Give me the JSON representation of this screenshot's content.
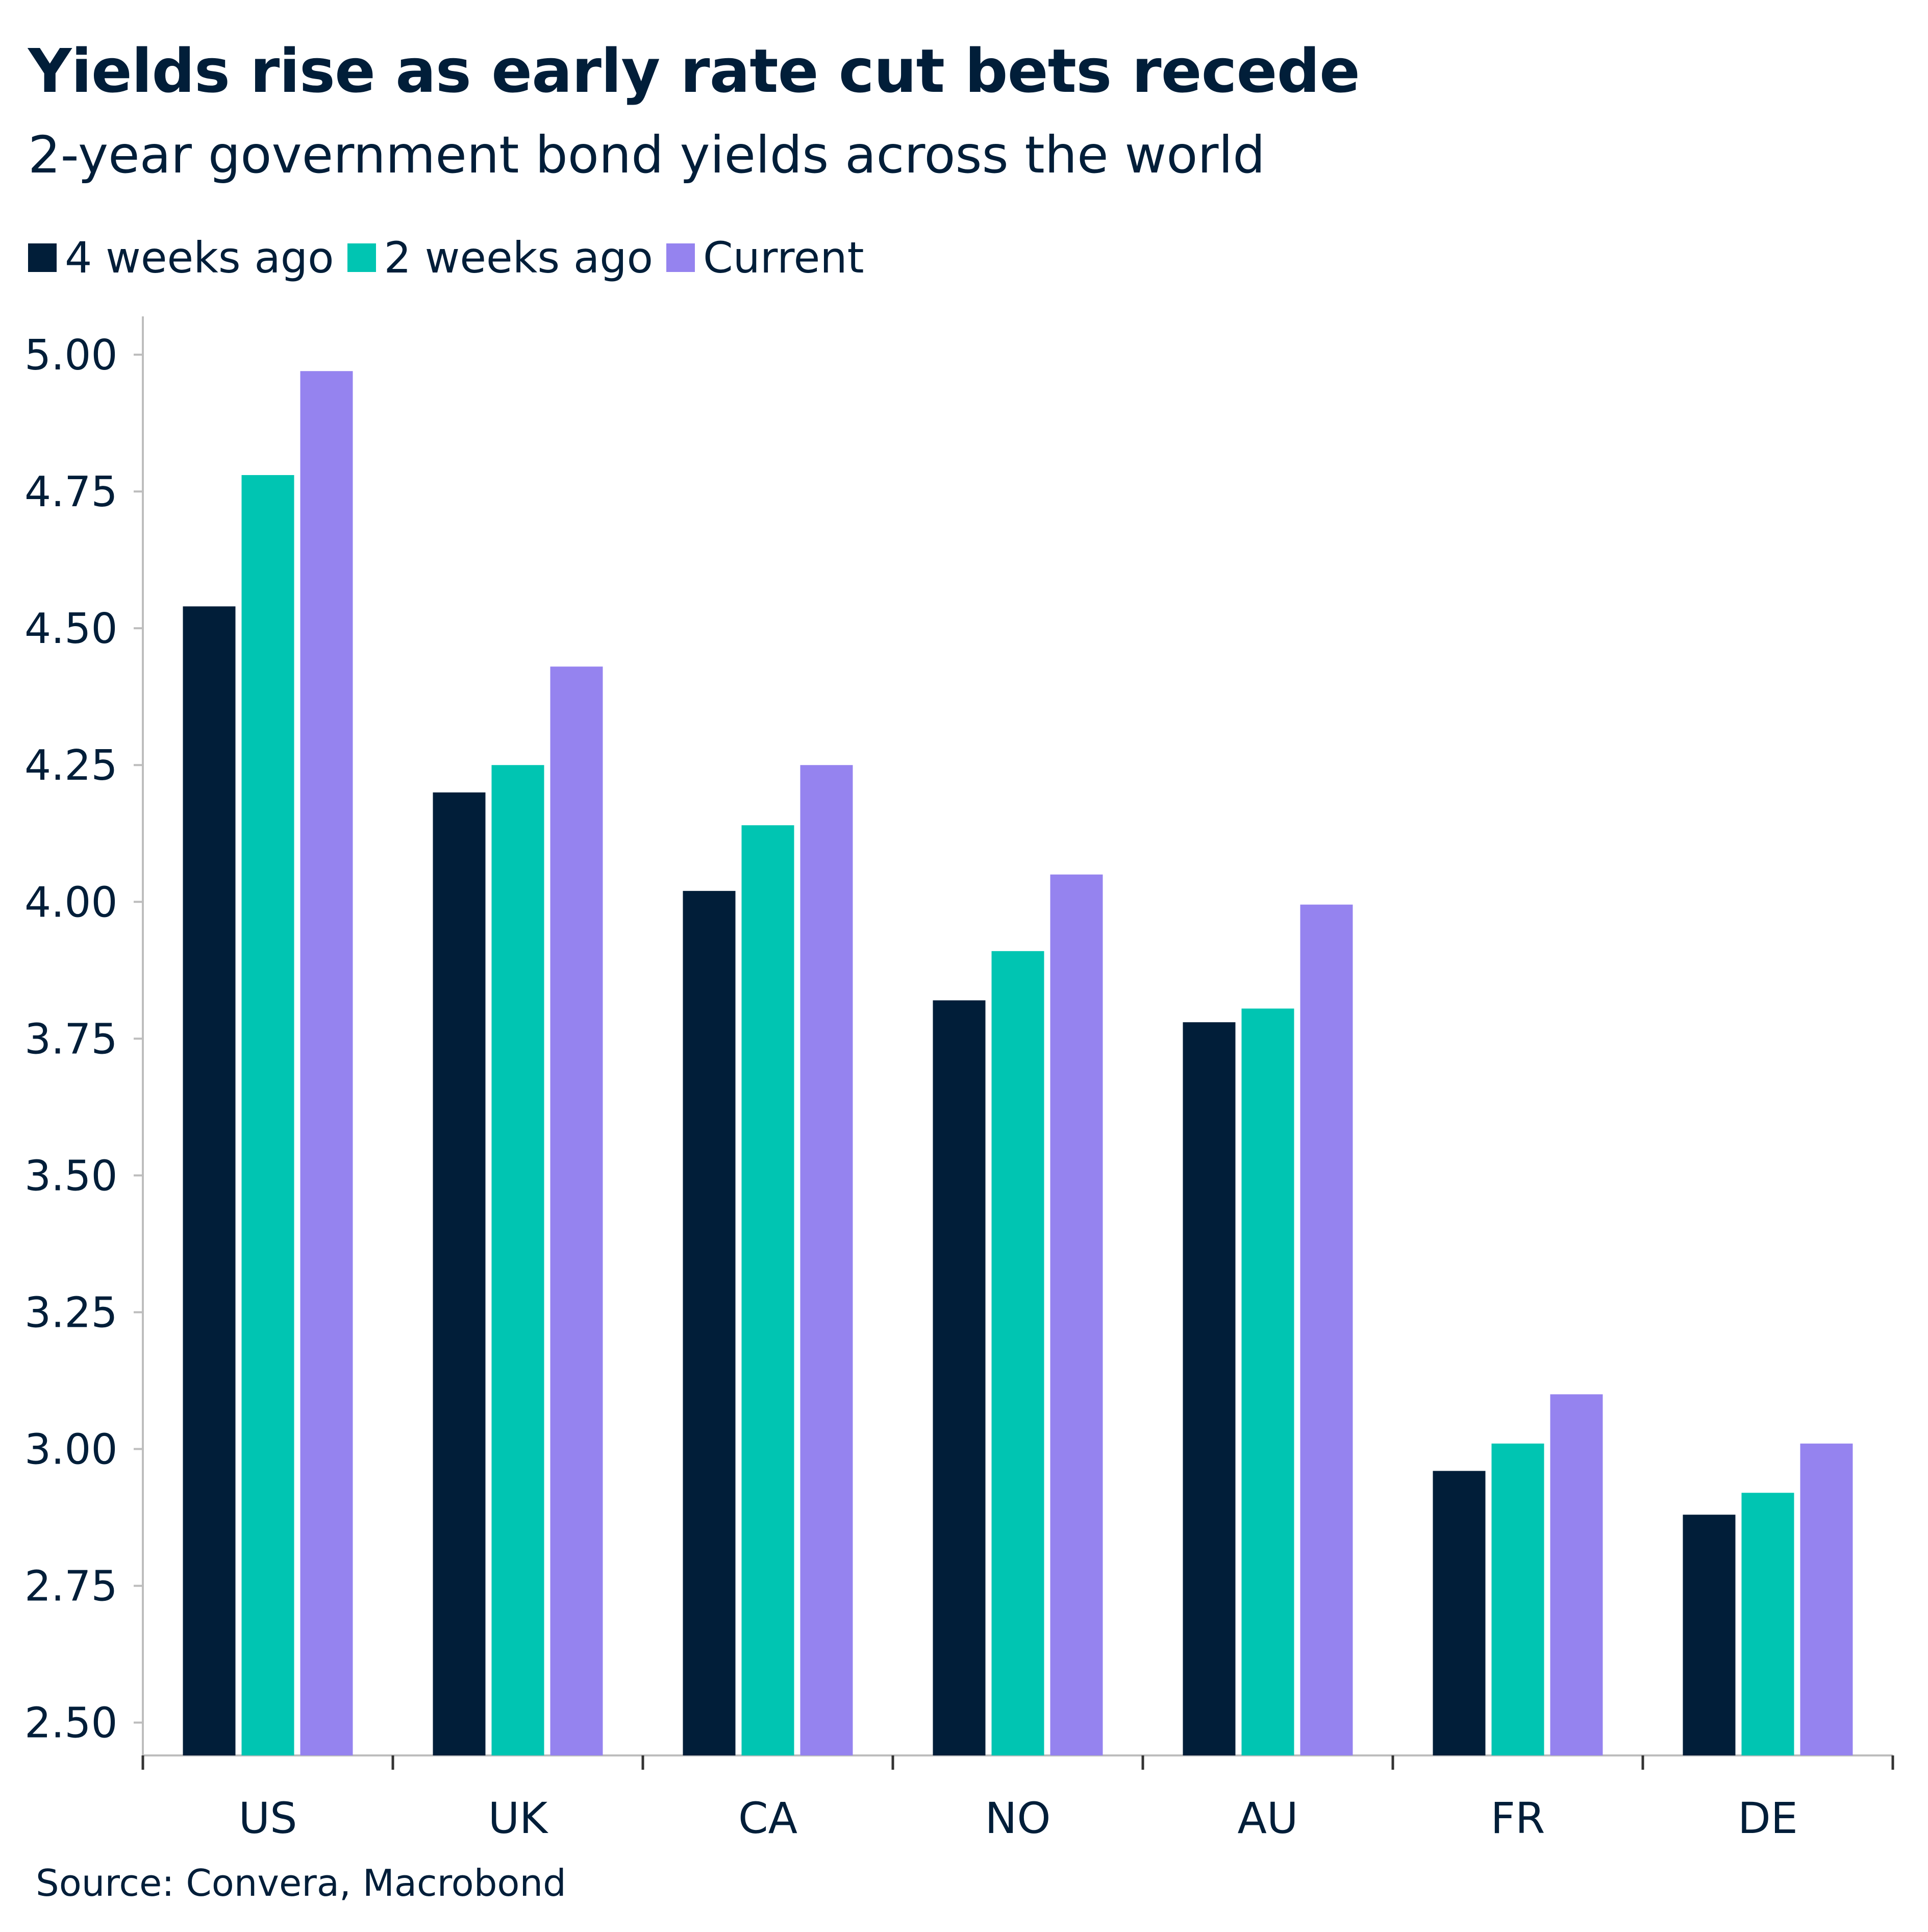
{
  "chart_data": {
    "type": "bar",
    "title": "Yields rise as early rate cut bets recede",
    "subtitle": "2-year government bond yields across the world",
    "categories": [
      "US",
      "UK",
      "CA",
      "NO",
      "AU",
      "FR",
      "DE"
    ],
    "series": [
      {
        "name": "4 weeks ago",
        "color": "#011e39",
        "values": [
          4.54,
          4.2,
          4.02,
          3.82,
          3.78,
          2.96,
          2.88
        ]
      },
      {
        "name": "2 weeks ago",
        "color": "#00c5b2",
        "values": [
          4.78,
          4.25,
          4.14,
          3.91,
          3.805,
          3.01,
          2.92
        ]
      },
      {
        "name": "Current",
        "color": "#9583ef",
        "values": [
          4.97,
          4.43,
          4.25,
          4.05,
          3.995,
          3.1,
          3.01
        ]
      }
    ],
    "y_ticks": [
      "2.50",
      "2.75",
      "3.00",
      "3.25",
      "3.50",
      "3.75",
      "4.00",
      "4.25",
      "4.50",
      "4.75",
      "5.00"
    ],
    "ylim": [
      2.44,
      5.07
    ],
    "xlabel": "",
    "ylabel": "",
    "grid": false,
    "legend_position": "top-left"
  },
  "source": "Source: Convera, Macrobond"
}
